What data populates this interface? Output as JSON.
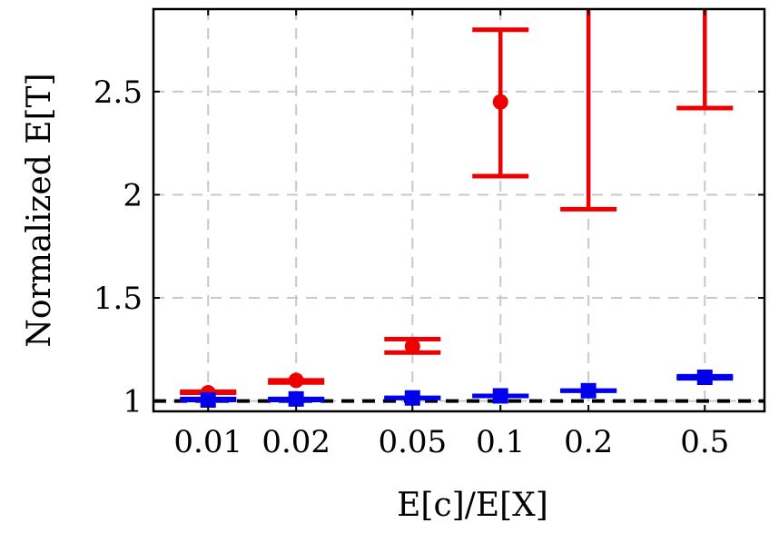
{
  "chart_data": {
    "type": "scatter",
    "title": "",
    "xlabel": "E[c]/E[X]",
    "ylabel": "Normalized E[T]",
    "x_tick_labels": [
      "0.01",
      "0.02",
      "0.05",
      "0.1",
      "0.2",
      "0.5"
    ],
    "x_scale": "log",
    "x_axis_range": [
      0.0065,
      0.8
    ],
    "y_axis_range": [
      0.95,
      2.9
    ],
    "y_ticks": [
      1,
      1.5,
      2,
      2.5
    ],
    "y_tick_labels": [
      "1",
      "1.5",
      "2",
      "2.5"
    ],
    "grid": true,
    "reference_line": {
      "y": 1.0,
      "style": "dashed",
      "color": "#000000"
    },
    "series": [
      {
        "color": "#ee0000",
        "marker": "circle",
        "points": [
          {
            "x": 0.01,
            "y": 1.04,
            "err_low": 1.04,
            "err_high": 1.045
          },
          {
            "x": 0.02,
            "y": 1.1,
            "err_low": 1.09,
            "err_high": 1.1
          },
          {
            "x": 0.05,
            "y": 1.265,
            "err_low": 1.235,
            "err_high": 1.3
          },
          {
            "x": 0.1,
            "y": 2.45,
            "err_low": 2.09,
            "err_high": 2.8
          },
          {
            "x": 0.2,
            "y": null,
            "err_low": 1.93,
            "err_high": null
          },
          {
            "x": 0.5,
            "y": null,
            "err_low": 2.42,
            "err_high": null
          }
        ]
      },
      {
        "color": "#0000ee",
        "marker": "square",
        "points": [
          {
            "x": 0.01,
            "y": 1.005,
            "err_low": 1.005,
            "err_high": 1.01
          },
          {
            "x": 0.02,
            "y": 1.01,
            "err_low": 1.005,
            "err_high": 1.01
          },
          {
            "x": 0.05,
            "y": 1.015,
            "err_low": 1.015,
            "err_high": 1.015
          },
          {
            "x": 0.1,
            "y": 1.025,
            "err_low": 1.025,
            "err_high": 1.025
          },
          {
            "x": 0.2,
            "y": 1.05,
            "err_low": 1.05,
            "err_high": 1.05
          },
          {
            "x": 0.5,
            "y": 1.115,
            "err_low": 1.11,
            "err_high": 1.12
          }
        ]
      }
    ]
  }
}
